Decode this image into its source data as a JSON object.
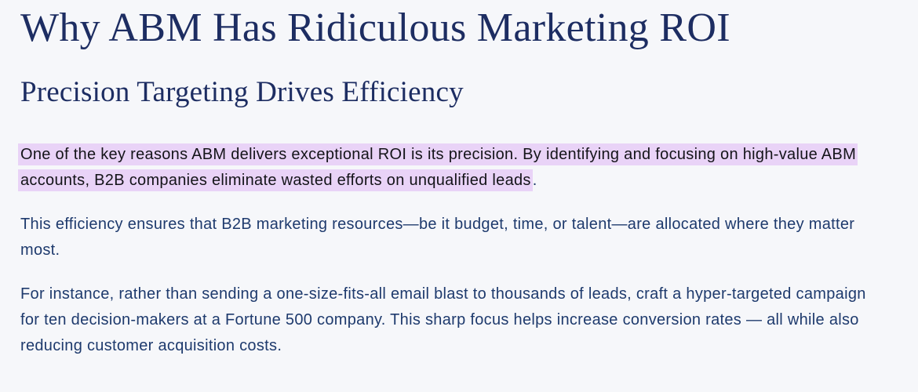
{
  "page": {
    "title": "Why ABM Has Ridiculous Marketing ROI",
    "subtitle": "Precision Targeting Drives Efficiency",
    "paragraphs": [
      {
        "highlighted_text": "One of the key reasons ABM delivers exceptional ROI is its precision. By identifying and focusing on high-value ABM accounts, B2B companies eliminate wasted efforts on unqualified leads",
        "after_highlight": "."
      },
      {
        "text": "This efficiency ensures that B2B marketing resources—be it budget, time, or talent—are allocated where they matter most."
      },
      {
        "text": "For instance, rather than sending a one-size-fits-all email blast to thousands of leads, craft a hyper-targeted campaign for ten decision-makers at a Fortune 500 company. This sharp focus helps increase conversion rates — all while also reducing customer acquisition costs."
      }
    ],
    "colors": {
      "page_background": "#f6f7fa",
      "heading_text": "#1d2d62",
      "body_text": "#1e3a6d",
      "highlight_background": "#e9d3f7",
      "highlight_text": "#141419"
    }
  }
}
